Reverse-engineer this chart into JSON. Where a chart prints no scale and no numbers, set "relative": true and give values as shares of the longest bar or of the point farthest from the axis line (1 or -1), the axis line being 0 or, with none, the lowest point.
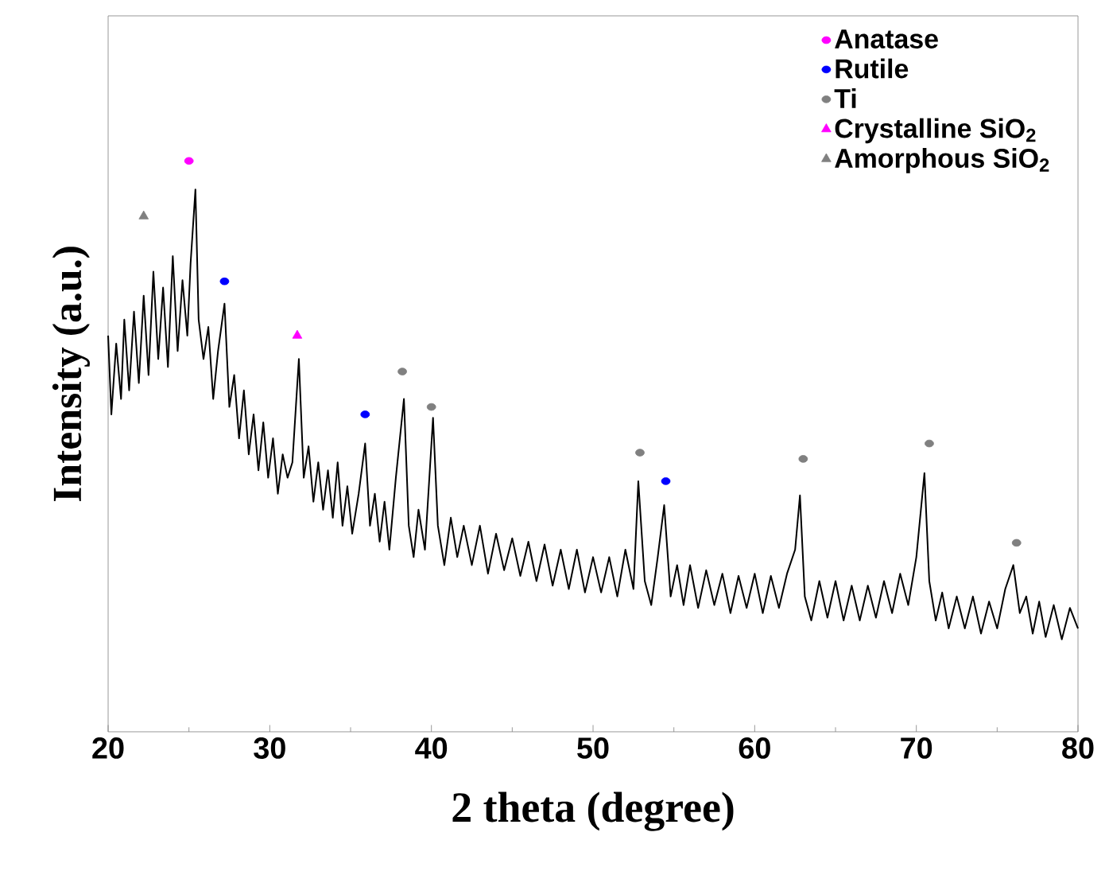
{
  "chart_data": {
    "type": "line",
    "xlabel": "2 theta (degree)",
    "ylabel": "Intensity (a.u.)",
    "relative": true,
    "xlim": [
      20,
      80
    ],
    "xticks": [
      20,
      30,
      40,
      50,
      60,
      70,
      80
    ],
    "legend": "top right",
    "series": [
      {
        "color": "#000000",
        "marker": "none",
        "x": [
          20.0,
          20.2,
          20.5,
          20.8,
          21.0,
          21.3,
          21.6,
          21.9,
          22.2,
          22.5,
          22.8,
          23.1,
          23.4,
          23.7,
          24.0,
          24.3,
          24.6,
          24.9,
          25.1,
          25.4,
          25.6,
          25.9,
          26.2,
          26.5,
          26.8,
          27.2,
          27.5,
          27.8,
          28.1,
          28.4,
          28.7,
          29.0,
          29.3,
          29.6,
          29.9,
          30.2,
          30.5,
          30.8,
          31.1,
          31.4,
          31.8,
          32.1,
          32.4,
          32.7,
          33.0,
          33.3,
          33.6,
          33.9,
          34.2,
          34.5,
          34.8,
          35.1,
          35.5,
          35.9,
          36.2,
          36.5,
          36.8,
          37.1,
          37.4,
          37.8,
          38.3,
          38.6,
          38.9,
          39.2,
          39.6,
          40.1,
          40.4,
          40.8,
          41.2,
          41.6,
          42.0,
          42.5,
          43.0,
          43.5,
          44.0,
          44.5,
          45.0,
          45.5,
          46.0,
          46.5,
          47.0,
          47.5,
          48.0,
          48.5,
          49.0,
          49.5,
          50.0,
          50.5,
          51.0,
          51.5,
          52.0,
          52.5,
          52.8,
          53.2,
          53.6,
          54.0,
          54.4,
          54.8,
          55.2,
          55.6,
          56.0,
          56.5,
          57.0,
          57.5,
          58.0,
          58.5,
          59.0,
          59.5,
          60.0,
          60.5,
          61.0,
          61.5,
          62.0,
          62.5,
          62.8,
          63.1,
          63.5,
          64.0,
          64.5,
          65.0,
          65.5,
          66.0,
          66.5,
          67.0,
          67.5,
          68.0,
          68.5,
          69.0,
          69.5,
          70.0,
          70.5,
          70.8,
          71.2,
          71.6,
          72.0,
          72.5,
          73.0,
          73.5,
          74.0,
          74.5,
          75.0,
          75.5,
          76.0,
          76.4,
          76.8,
          77.2,
          77.6,
          78.0,
          78.5,
          79.0,
          79.5,
          80.0
        ],
        "values": [
          0.694,
          0.556,
          0.68,
          0.583,
          0.722,
          0.598,
          0.736,
          0.611,
          0.764,
          0.625,
          0.806,
          0.653,
          0.778,
          0.639,
          0.833,
          0.667,
          0.791,
          0.694,
          0.82,
          0.95,
          0.722,
          0.653,
          0.709,
          0.583,
          0.667,
          0.75,
          0.569,
          0.625,
          0.514,
          0.598,
          0.486,
          0.556,
          0.458,
          0.542,
          0.445,
          0.514,
          0.417,
          0.486,
          0.445,
          0.472,
          0.653,
          0.445,
          0.5,
          0.403,
          0.472,
          0.389,
          0.458,
          0.375,
          0.472,
          0.361,
          0.43,
          0.347,
          0.417,
          0.505,
          0.361,
          0.417,
          0.333,
          0.403,
          0.319,
          0.445,
          0.583,
          0.361,
          0.306,
          0.389,
          0.319,
          0.55,
          0.361,
          0.292,
          0.375,
          0.306,
          0.361,
          0.292,
          0.361,
          0.277,
          0.347,
          0.283,
          0.339,
          0.273,
          0.333,
          0.264,
          0.328,
          0.256,
          0.319,
          0.25,
          0.319,
          0.244,
          0.306,
          0.244,
          0.306,
          0.237,
          0.319,
          0.25,
          0.439,
          0.264,
          0.222,
          0.306,
          0.397,
          0.237,
          0.292,
          0.222,
          0.292,
          0.217,
          0.283,
          0.222,
          0.277,
          0.208,
          0.273,
          0.217,
          0.277,
          0.208,
          0.273,
          0.217,
          0.277,
          0.319,
          0.414,
          0.237,
          0.195,
          0.264,
          0.2,
          0.264,
          0.195,
          0.256,
          0.195,
          0.256,
          0.2,
          0.264,
          0.208,
          0.277,
          0.222,
          0.306,
          0.453,
          0.264,
          0.195,
          0.244,
          0.181,
          0.237,
          0.181,
          0.237,
          0.172,
          0.228,
          0.181,
          0.25,
          0.292,
          0.208,
          0.237,
          0.172,
          0.228,
          0.166,
          0.222,
          0.162,
          0.217,
          0.181
        ]
      },
      {
        "type": "scatter",
        "name": "Anatase",
        "color": "#ff00ff",
        "marker": "circle",
        "x": [
          25.0
        ],
        "values": [
          1.0
        ]
      },
      {
        "type": "scatter",
        "name": "Rutile",
        "color": "#0000ff",
        "marker": "circle",
        "x": [
          27.2,
          35.9,
          54.5
        ],
        "values": [
          0.789,
          0.556,
          0.439
        ]
      },
      {
        "type": "scatter",
        "name": "Ti",
        "color": "#808080",
        "marker": "circle",
        "x": [
          38.2,
          40.0,
          52.9,
          63.0,
          70.8,
          76.2
        ],
        "values": [
          0.631,
          0.569,
          0.489,
          0.478,
          0.505,
          0.331
        ]
      },
      {
        "type": "scatter",
        "name": "Crystalline SiO$_{2}$",
        "color": "#ff00ff",
        "marker": "triangle",
        "x": [
          31.7
        ],
        "values": [
          0.694
        ]
      },
      {
        "type": "scatter",
        "name": "Amorphous SiO$_{2}$",
        "color": "#808080",
        "marker": "triangle",
        "x": [
          22.2
        ],
        "values": [
          0.903
        ]
      }
    ]
  }
}
